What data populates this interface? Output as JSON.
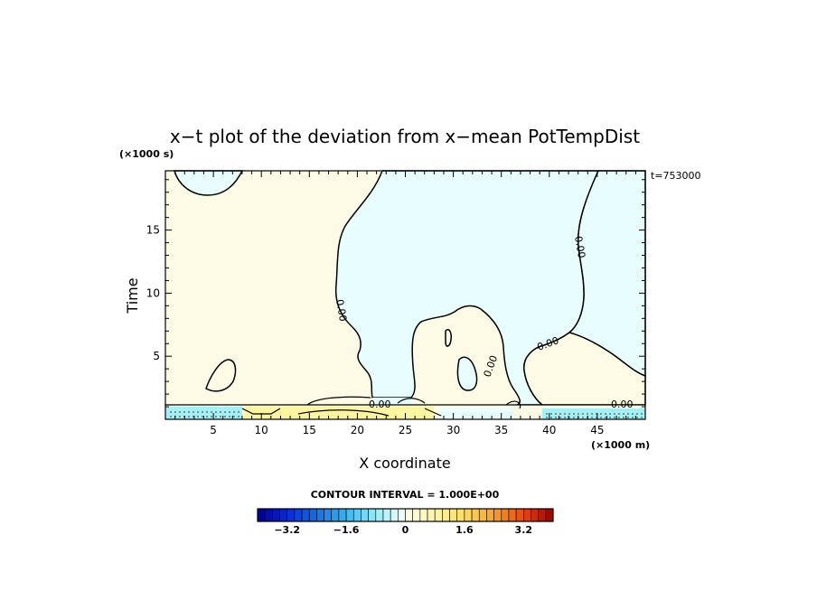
{
  "chart_data": {
    "type": "heatmap",
    "title": "x−t plot of the deviation from x−mean PotTempDist",
    "xlabel": "X coordinate",
    "ylabel": "Time",
    "x_unit": "(×1000 m)",
    "y_unit": "(×1000 s)",
    "time_stamp": "t=753000",
    "xlim": [
      0,
      50
    ],
    "ylim": [
      0,
      19.7
    ],
    "x_ticks": [
      5,
      10,
      15,
      20,
      25,
      30,
      35,
      40,
      45
    ],
    "y_ticks": [
      5,
      10,
      15
    ],
    "contour_interval_label": "CONTOUR INTERVAL = 1.000E+00",
    "contour_labels": [
      "0.00",
      "0.00",
      "0.00",
      "0.00",
      "0.00",
      "0.00"
    ],
    "colorbar": {
      "min": -4.0,
      "max": 4.0,
      "step": 0.2,
      "tick_values": [
        -3.2,
        -1.6,
        0,
        1.6,
        3.2
      ],
      "tick_labels": [
        "−3.2",
        "−1.6",
        "0",
        "1.6",
        "3.2"
      ]
    },
    "colors": {
      "positive_small": "#fdfbe6",
      "negative_small": "#e8fdfd",
      "positive_medium": "#fdf5a0",
      "negative_medium": "#a6f0f5",
      "negative_strong": "#40b6d0",
      "contour": "#000000"
    },
    "regions": [
      {
        "sign": "negative",
        "x": [
          0.8,
          9
        ],
        "y": [
          17.8,
          19.7
        ]
      },
      {
        "sign": "negative",
        "x": [
          19,
          43.5
        ],
        "y": [
          1.5,
          19.7
        ]
      },
      {
        "sign": "negative",
        "x": [
          37.5,
          50
        ],
        "y": [
          1.5,
          19.7
        ]
      },
      {
        "sign": "positive",
        "x": [
          5,
          7
        ],
        "y": [
          2,
          5
        ]
      },
      {
        "sign": "positive",
        "x": [
          26,
          34.5
        ],
        "y": [
          1.5,
          9
        ]
      },
      {
        "sign": "positive",
        "x": [
          35.5,
          42
        ],
        "y": [
          1.5,
          6.5
        ]
      },
      {
        "sign": "positive_medium",
        "x": [
          9,
          28
        ],
        "y": [
          0,
          1
        ]
      },
      {
        "sign": "negative_medium",
        "x": [
          0,
          8
        ],
        "y": [
          0,
          1
        ]
      },
      {
        "sign": "negative_medium",
        "x": [
          38,
          50
        ],
        "y": [
          0,
          1
        ]
      }
    ]
  }
}
